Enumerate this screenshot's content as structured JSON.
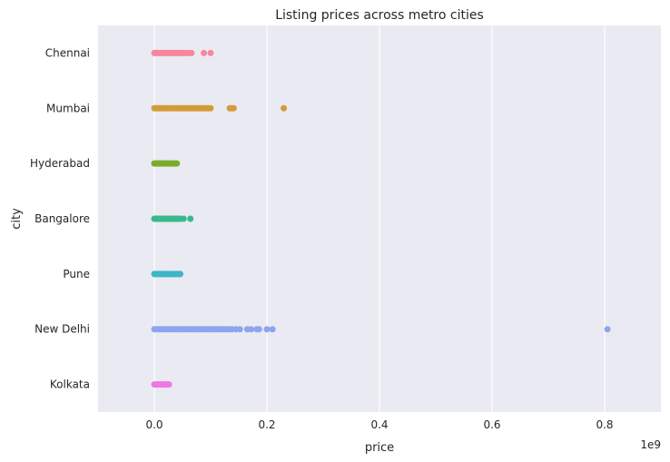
{
  "chart_data": {
    "type": "scatter",
    "subtype": "strip",
    "title": "Listing prices across metro cities",
    "xlabel": "price",
    "ylabel": "city",
    "x_offset_label": "1e9",
    "xlim": [
      -0.1,
      0.9
    ],
    "x_ticks": [
      0.0,
      0.2,
      0.4,
      0.6,
      0.8
    ],
    "x_tick_labels": [
      "0.0",
      "0.2",
      "0.4",
      "0.6",
      "0.8"
    ],
    "grid": true,
    "categories": [
      "Chennai",
      "Mumbai",
      "Hyderabad",
      "Bangalore",
      "Pune",
      "New Delhi",
      "Kolkata"
    ],
    "series": [
      {
        "name": "Chennai",
        "color": "#f7879c",
        "values": [
          0.0,
          0.002,
          0.004,
          0.006,
          0.008,
          0.01,
          0.012,
          0.014,
          0.016,
          0.018,
          0.02,
          0.022,
          0.024,
          0.026,
          0.028,
          0.03,
          0.032,
          0.034,
          0.036,
          0.038,
          0.04,
          0.042,
          0.044,
          0.046,
          0.048,
          0.05,
          0.052,
          0.055,
          0.058,
          0.062,
          0.066,
          0.088,
          0.1
        ]
      },
      {
        "name": "Mumbai",
        "color": "#d39c3a",
        "values": [
          0.0,
          0.003,
          0.006,
          0.009,
          0.012,
          0.015,
          0.018,
          0.021,
          0.024,
          0.027,
          0.03,
          0.033,
          0.036,
          0.039,
          0.042,
          0.045,
          0.048,
          0.051,
          0.054,
          0.057,
          0.06,
          0.063,
          0.066,
          0.069,
          0.072,
          0.075,
          0.078,
          0.081,
          0.084,
          0.087,
          0.09,
          0.093,
          0.096,
          0.1,
          0.134,
          0.138,
          0.141,
          0.23
        ]
      },
      {
        "name": "Hyderabad",
        "color": "#7aac2c",
        "values": [
          0.0,
          0.002,
          0.004,
          0.006,
          0.008,
          0.01,
          0.012,
          0.014,
          0.016,
          0.018,
          0.02,
          0.022,
          0.024,
          0.026,
          0.028,
          0.03,
          0.033,
          0.036,
          0.038,
          0.04
        ]
      },
      {
        "name": "Bangalore",
        "color": "#38b88b",
        "values": [
          0.0,
          0.002,
          0.004,
          0.006,
          0.008,
          0.01,
          0.012,
          0.014,
          0.016,
          0.018,
          0.02,
          0.022,
          0.024,
          0.026,
          0.028,
          0.03,
          0.032,
          0.034,
          0.036,
          0.038,
          0.04,
          0.043,
          0.046,
          0.052,
          0.064
        ]
      },
      {
        "name": "Pune",
        "color": "#3cb6c8",
        "values": [
          0.0,
          0.002,
          0.004,
          0.006,
          0.008,
          0.01,
          0.012,
          0.014,
          0.016,
          0.018,
          0.02,
          0.022,
          0.024,
          0.026,
          0.028,
          0.03,
          0.032,
          0.034,
          0.036,
          0.038,
          0.04,
          0.042,
          0.044,
          0.046
        ]
      },
      {
        "name": "New Delhi",
        "color": "#8ea4f0",
        "values": [
          0.0,
          0.004,
          0.008,
          0.012,
          0.016,
          0.02,
          0.024,
          0.028,
          0.032,
          0.036,
          0.04,
          0.044,
          0.048,
          0.052,
          0.056,
          0.06,
          0.064,
          0.068,
          0.072,
          0.076,
          0.08,
          0.084,
          0.088,
          0.092,
          0.096,
          0.1,
          0.104,
          0.108,
          0.112,
          0.116,
          0.12,
          0.124,
          0.128,
          0.132,
          0.138,
          0.145,
          0.152,
          0.165,
          0.172,
          0.182,
          0.186,
          0.2,
          0.21,
          0.805
        ]
      },
      {
        "name": "Kolkata",
        "color": "#ef77e0",
        "values": [
          0.0,
          0.002,
          0.004,
          0.006,
          0.008,
          0.01,
          0.012,
          0.014,
          0.016,
          0.018,
          0.02,
          0.022,
          0.024,
          0.026
        ]
      }
    ]
  }
}
